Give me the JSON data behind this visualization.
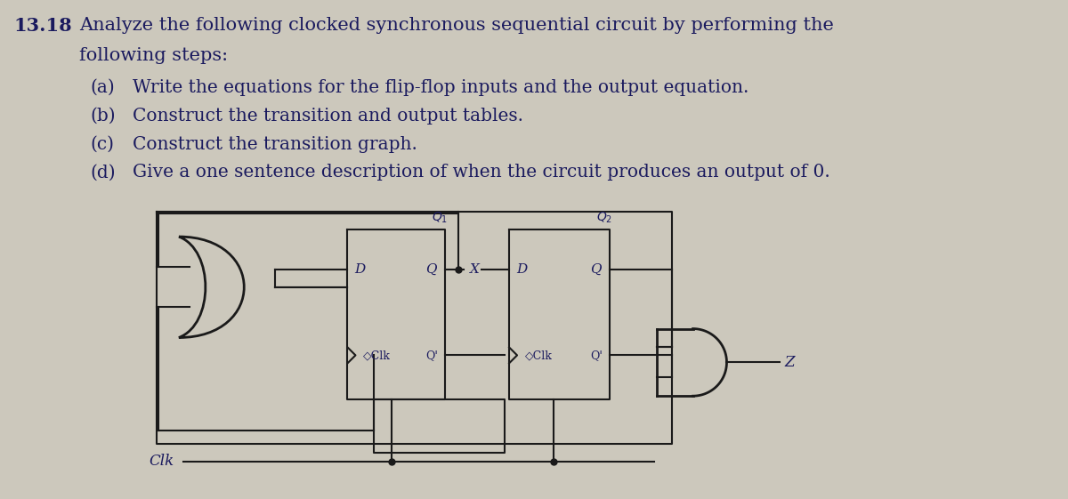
{
  "bg_color": "#ccc8bc",
  "text_color": "#1a1a5e",
  "line_color": "#1a1a1a",
  "fig_width": 12.0,
  "fig_height": 5.61,
  "title_number": "13.18",
  "line1": "Analyze the following clocked synchronous sequential circuit by performing the",
  "line2": "following steps:",
  "items_label": [
    "(a)",
    "(b)",
    "(c)",
    "(d)"
  ],
  "items_text": [
    "Write the equations for the flip-flop inputs and the output equation.",
    "Construct the transition and output tables.",
    "Construct the transition graph.",
    "Give a one sentence description of when the circuit produces an output of 0."
  ]
}
